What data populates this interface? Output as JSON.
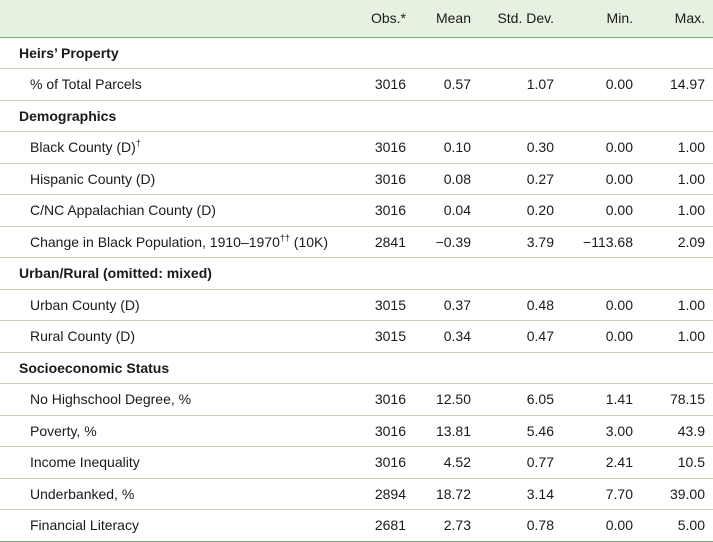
{
  "header": {
    "label": "",
    "obs": "Obs.*",
    "mean": "Mean",
    "sd": "Std. Dev.",
    "min": "Min.",
    "max": "Max."
  },
  "sections": [
    {
      "title": "Heirs’ Property",
      "rows": [
        {
          "label": "% of Total Parcels",
          "sup": "",
          "suffix": "",
          "obs": "3016",
          "mean": "0.57",
          "sd": "1.07",
          "min": "0.00",
          "max": "14.97"
        }
      ]
    },
    {
      "title": "Demographics",
      "rows": [
        {
          "label": "Black County (D)",
          "sup": "†",
          "suffix": "",
          "obs": "3016",
          "mean": "0.10",
          "sd": "0.30",
          "min": "0.00",
          "max": "1.00"
        },
        {
          "label": "Hispanic County (D)",
          "sup": "",
          "suffix": "",
          "obs": "3016",
          "mean": "0.08",
          "sd": "0.27",
          "min": "0.00",
          "max": "1.00"
        },
        {
          "label": "C/NC Appalachian County (D)",
          "sup": "",
          "suffix": "",
          "obs": "3016",
          "mean": "0.04",
          "sd": "0.20",
          "min": "0.00",
          "max": "1.00"
        },
        {
          "label": "Change in Black Population, 1910–1970",
          "sup": "††",
          "suffix": " (10K)",
          "obs": "2841",
          "mean": "−0.39",
          "sd": "3.79",
          "min": "−113.68",
          "max": "2.09"
        }
      ]
    },
    {
      "title": "Urban/Rural (omitted: mixed)",
      "rows": [
        {
          "label": "Urban County (D)",
          "sup": "",
          "suffix": "",
          "obs": "3015",
          "mean": "0.37",
          "sd": "0.48",
          "min": "0.00",
          "max": "1.00"
        },
        {
          "label": "Rural County (D)",
          "sup": "",
          "suffix": "",
          "obs": "3015",
          "mean": "0.34",
          "sd": "0.47",
          "min": "0.00",
          "max": "1.00"
        }
      ]
    },
    {
      "title": "Socioeconomic Status",
      "rows": [
        {
          "label": "No Highschool Degree, %",
          "sup": "",
          "suffix": "",
          "obs": "3016",
          "mean": "12.50",
          "sd": "6.05",
          "min": "1.41",
          "max": "78.15"
        },
        {
          "label": "Poverty, %",
          "sup": "",
          "suffix": "",
          "obs": "3016",
          "mean": "13.81",
          "sd": "5.46",
          "min": "3.00",
          "max": "43.9"
        },
        {
          "label": "Income Inequality",
          "sup": "",
          "suffix": "",
          "obs": "3016",
          "mean": "4.52",
          "sd": "0.77",
          "min": "2.41",
          "max": "10.5"
        },
        {
          "label": "Underbanked, %",
          "sup": "",
          "suffix": "",
          "obs": "2894",
          "mean": "18.72",
          "sd": "3.14",
          "min": "7.70",
          "max": "39.00"
        },
        {
          "label": "Financial Literacy",
          "sup": "",
          "suffix": "",
          "obs": "2681",
          "mean": "2.73",
          "sd": "0.78",
          "min": "0.00",
          "max": "5.00"
        }
      ]
    }
  ]
}
